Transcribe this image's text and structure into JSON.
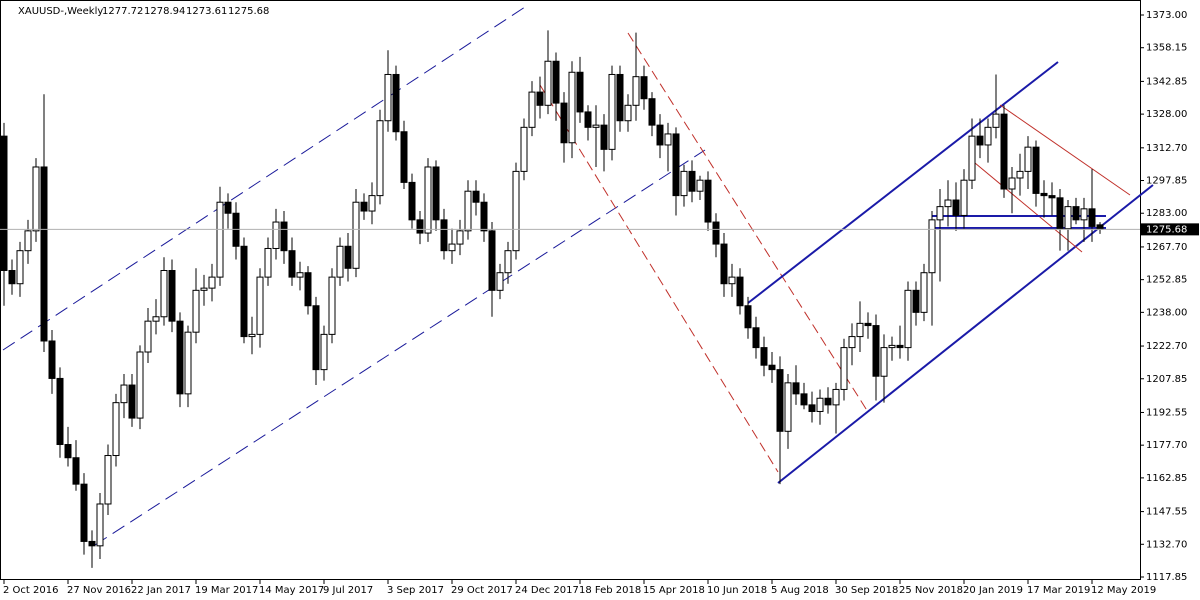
{
  "chart_data": {
    "type": "candlestick",
    "title": "XAUUSD-,Weekly",
    "categories": [
      "2 Oct 2016",
      null,
      null,
      null,
      null,
      null,
      null,
      null,
      "27 Nov 2016",
      null,
      null,
      null,
      null,
      null,
      null,
      null,
      "22 Jan 2017",
      null,
      null,
      null,
      null,
      null,
      null,
      null,
      "19 Mar 2017",
      null,
      null,
      null,
      null,
      null,
      null,
      null,
      "14 May 2017",
      null,
      null,
      null,
      null,
      null,
      null,
      null,
      "9 Jul 2017",
      null,
      null,
      null,
      null,
      null,
      null,
      null,
      "3 Sep 2017",
      null,
      null,
      null,
      null,
      null,
      null,
      null,
      "29 Oct 2017",
      null,
      null,
      null,
      null,
      null,
      null,
      null,
      "24 Dec 2017",
      null,
      null,
      null,
      null,
      null,
      null,
      null,
      "18 Feb 2018",
      null,
      null,
      null,
      null,
      null,
      null,
      null,
      "15 Apr 2018",
      null,
      null,
      null,
      null,
      null,
      null,
      null,
      "10 Jun 2018",
      null,
      null,
      null,
      null,
      null,
      null,
      null,
      "5 Aug 2018",
      null,
      null,
      null,
      null,
      null,
      null,
      null,
      "30 Sep 2018",
      null,
      null,
      null,
      null,
      null,
      null,
      null,
      "25 Nov 2018",
      null,
      null,
      null,
      null,
      null,
      null,
      null,
      "20 Jan 2019",
      null,
      null,
      null,
      null,
      null,
      null,
      null,
      "17 Mar 2019",
      null,
      null,
      null,
      null,
      null,
      null,
      null,
      "12 May 2019",
      null
    ],
    "open": [
      1318,
      1257,
      1251,
      1266,
      1275,
      1304,
      1225,
      1208,
      1178,
      1172,
      1160,
      1134,
      1132,
      1151,
      1173,
      1197,
      1205,
      1190,
      1220,
      1234,
      1236,
      1257,
      1234,
      1201,
      1229,
      1248,
      1249,
      1254,
      1288,
      1283,
      1268,
      1227,
      1228,
      1254,
      1267,
      1279,
      1266,
      1254,
      1256,
      1241,
      1212,
      1228,
      1254,
      1268,
      1258,
      1288,
      1284,
      1291,
      1325,
      1346,
      1320,
      1297,
      1280,
      1274,
      1304,
      1280,
      1266,
      1269,
      1275,
      1293,
      1288,
      1275,
      1248,
      1256,
      1266,
      1302,
      1322,
      1338,
      1332,
      1352,
      1333,
      1315,
      1347,
      1329,
      1322,
      1323,
      1312,
      1346,
      1325,
      1332,
      1345,
      1335,
      1323,
      1314,
      1319,
      1291,
      1302,
      1293,
      1298,
      1279,
      1269,
      1251,
      1254,
      1241,
      1231,
      1222,
      1214,
      1212,
      1184,
      1206,
      1201,
      1196,
      1193,
      1199,
      1196,
      1203,
      1222,
      1227,
      1233,
      1232,
      1209,
      1222,
      1223,
      1222,
      1248,
      1238,
      1256,
      1280,
      1286,
      1289,
      1282,
      1298,
      1318,
      1314,
      1322,
      1328,
      1294,
      1299,
      1302,
      1313,
      1292,
      1291,
      1290,
      1276,
      1286,
      1280,
      1285,
      1277.72
    ],
    "high": [
      1324,
      1262,
      1270,
      1280,
      1308,
      1337,
      1230,
      1213,
      1186,
      1180,
      1165,
      1139,
      1156,
      1178,
      1201,
      1210,
      1210,
      1223,
      1240,
      1244,
      1263,
      1262,
      1238,
      1232,
      1258,
      1255,
      1260,
      1295,
      1292,
      1288,
      1272,
      1236,
      1258,
      1272,
      1285,
      1284,
      1272,
      1261,
      1259,
      1245,
      1232,
      1258,
      1272,
      1274,
      1294,
      1292,
      1297,
      1330,
      1357,
      1350,
      1325,
      1301,
      1284,
      1308,
      1307,
      1285,
      1276,
      1280,
      1298,
      1298,
      1292,
      1279,
      1260,
      1270,
      1306,
      1326,
      1343,
      1345,
      1366,
      1356,
      1338,
      1352,
      1354,
      1332,
      1332,
      1328,
      1350,
      1350,
      1337,
      1365,
      1350,
      1338,
      1328,
      1324,
      1322,
      1305,
      1307,
      1300,
      1302,
      1283,
      1274,
      1260,
      1258,
      1245,
      1236,
      1227,
      1220,
      1218,
      1210,
      1214,
      1206,
      1202,
      1203,
      1204,
      1206,
      1226,
      1233,
      1243,
      1238,
      1237,
      1228,
      1227,
      1232,
      1252,
      1252,
      1260,
      1284,
      1294,
      1298,
      1297,
      1303,
      1326,
      1326,
      1326,
      1346,
      1332,
      1304,
      1310,
      1318,
      1316,
      1298,
      1297,
      1294,
      1289,
      1290,
      1290,
      1303,
      1278.94
    ],
    "low": [
      1241,
      1246,
      1245,
      1260,
      1270,
      1220,
      1201,
      1172,
      1168,
      1157,
      1128,
      1122,
      1126,
      1146,
      1168,
      1190,
      1186,
      1185,
      1215,
      1228,
      1232,
      1229,
      1195,
      1195,
      1224,
      1241,
      1243,
      1250,
      1276,
      1262,
      1224,
      1219,
      1222,
      1250,
      1262,
      1260,
      1250,
      1248,
      1237,
      1205,
      1207,
      1224,
      1250,
      1252,
      1254,
      1280,
      1278,
      1287,
      1320,
      1316,
      1294,
      1276,
      1269,
      1270,
      1275,
      1262,
      1260,
      1264,
      1271,
      1282,
      1270,
      1236,
      1244,
      1251,
      1262,
      1298,
      1318,
      1326,
      1328,
      1325,
      1306,
      1308,
      1324,
      1316,
      1304,
      1302,
      1307,
      1320,
      1320,
      1325,
      1330,
      1318,
      1308,
      1302,
      1282,
      1286,
      1288,
      1289,
      1275,
      1263,
      1245,
      1245,
      1237,
      1226,
      1217,
      1209,
      1206,
      1160,
      1176,
      1196,
      1194,
      1188,
      1187,
      1192,
      1183,
      1198,
      1214,
      1220,
      1226,
      1198,
      1197,
      1216,
      1217,
      1216,
      1232,
      1234,
      1232,
      1252,
      1277,
      1275,
      1276,
      1294,
      1308,
      1306,
      1317,
      1290,
      1283,
      1291,
      1294,
      1286,
      1281,
      1282,
      1266,
      1266,
      1278,
      1270,
      1270,
      1273.61
    ],
    "close": [
      1257,
      1251,
      1266,
      1275,
      1304,
      1225,
      1208,
      1178,
      1172,
      1160,
      1134,
      1132,
      1151,
      1173,
      1197,
      1205,
      1190,
      1220,
      1234,
      1236,
      1257,
      1234,
      1201,
      1229,
      1248,
      1249,
      1254,
      1288,
      1283,
      1268,
      1227,
      1228,
      1254,
      1267,
      1279,
      1266,
      1254,
      1256,
      1241,
      1212,
      1228,
      1254,
      1268,
      1258,
      1288,
      1284,
      1291,
      1325,
      1346,
      1320,
      1297,
      1280,
      1274,
      1304,
      1280,
      1266,
      1269,
      1275,
      1293,
      1288,
      1275,
      1248,
      1256,
      1266,
      1302,
      1322,
      1338,
      1332,
      1352,
      1333,
      1315,
      1347,
      1329,
      1322,
      1323,
      1312,
      1346,
      1325,
      1332,
      1345,
      1335,
      1323,
      1314,
      1319,
      1291,
      1302,
      1293,
      1298,
      1279,
      1269,
      1251,
      1254,
      1241,
      1231,
      1222,
      1214,
      1212,
      1184,
      1206,
      1201,
      1196,
      1193,
      1199,
      1196,
      1203,
      1222,
      1227,
      1233,
      1232,
      1209,
      1222,
      1223,
      1222,
      1248,
      1238,
      1256,
      1280,
      1286,
      1289,
      1282,
      1298,
      1318,
      1314,
      1322,
      1328,
      1294,
      1299,
      1302,
      1313,
      1292,
      1291,
      1290,
      1276,
      1286,
      1280,
      1285,
      1277,
      1275.68
    ],
    "up_color": "#ffffff",
    "down_color": "#000000",
    "ylim": [
      1117.85,
      1373
    ],
    "yticks": [
      {
        "value": 1373,
        "label": "1373.00"
      },
      {
        "value": 1358.15,
        "label": "1358.15"
      },
      {
        "value": 1342.85,
        "label": "1342.85"
      },
      {
        "value": 1328,
        "label": "1328.00"
      },
      {
        "value": 1312.7,
        "label": "1312.70"
      },
      {
        "value": 1297.85,
        "label": "1297.85"
      },
      {
        "value": 1283,
        "label": "1283.00"
      },
      {
        "value": 1267.7,
        "label": "1267.70"
      },
      {
        "value": 1252.85,
        "label": "1252.85"
      },
      {
        "value": 1238,
        "label": "1238.00"
      },
      {
        "value": 1222.7,
        "label": "1222.70"
      },
      {
        "value": 1207.85,
        "label": "1207.85"
      },
      {
        "value": 1192.55,
        "label": "1192.55"
      },
      {
        "value": 1177.7,
        "label": "1177.70"
      },
      {
        "value": 1162.85,
        "label": "1162.85"
      },
      {
        "value": 1147.55,
        "label": "1147.55"
      },
      {
        "value": 1132.7,
        "label": "1132.70"
      },
      {
        "value": 1117.85,
        "label": "1117.85"
      }
    ]
  }
}
